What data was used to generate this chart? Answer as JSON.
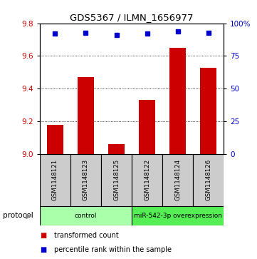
{
  "title": "GDS5367 / ILMN_1656977",
  "samples": [
    "GSM1148121",
    "GSM1148123",
    "GSM1148125",
    "GSM1148122",
    "GSM1148124",
    "GSM1148126"
  ],
  "transformed_counts": [
    9.18,
    9.47,
    9.06,
    9.33,
    9.65,
    9.53
  ],
  "percentile_ranks": [
    92,
    93,
    91,
    92,
    94,
    93
  ],
  "ylim_left": [
    9.0,
    9.8
  ],
  "ylim_right": [
    0,
    100
  ],
  "yticks_left": [
    9.0,
    9.2,
    9.4,
    9.6,
    9.8
  ],
  "yticks_right": [
    0,
    25,
    50,
    75,
    100
  ],
  "ytick_labels_right": [
    "0",
    "25",
    "50",
    "75",
    "100%"
  ],
  "bar_color": "#cc0000",
  "dot_color": "#0000cc",
  "grid_dotted_at": [
    9.2,
    9.4,
    9.6
  ],
  "protocol_groups": [
    {
      "label": "control",
      "indices": [
        0,
        1,
        2
      ],
      "color": "#aaffaa"
    },
    {
      "label": "miR-542-3p overexpression",
      "indices": [
        3,
        4,
        5
      ],
      "color": "#55ee55"
    }
  ],
  "legend_items": [
    {
      "label": "transformed count",
      "color": "#cc0000"
    },
    {
      "label": "percentile rank within the sample",
      "color": "#0000cc"
    }
  ],
  "protocol_label": "protocol",
  "background_color": "#ffffff",
  "plot_bg_color": "#ffffff",
  "tick_label_color_left": "#cc0000",
  "tick_label_color_right": "#0000cc",
  "sample_box_color": "#cccccc",
  "arrow_color": "#888888"
}
